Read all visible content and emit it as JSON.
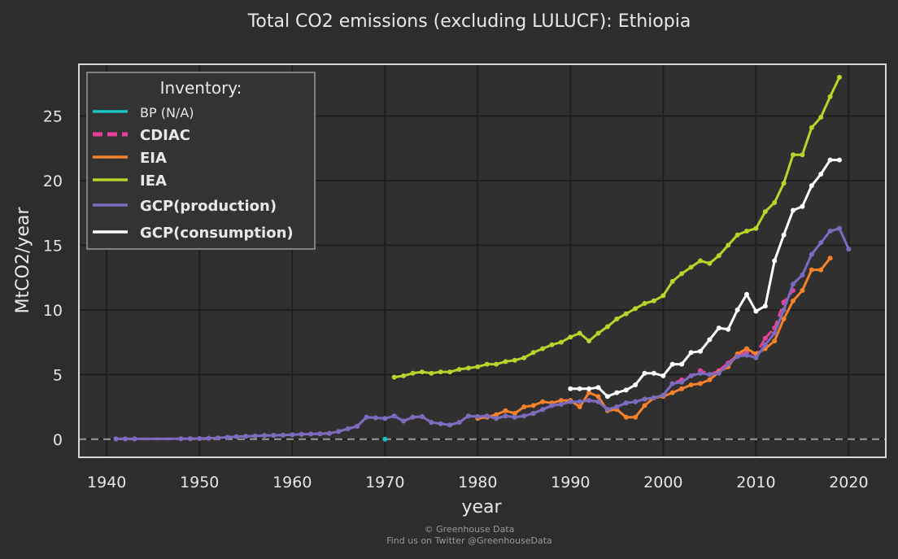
{
  "chart_data": {
    "type": "line",
    "title": "Total CO2 emissions (excluding LULUCF): Ethiopia",
    "xlabel": "year",
    "ylabel": "MtCO2/year",
    "xlim": [
      1937,
      2024
    ],
    "ylim": [
      -1.4,
      29
    ],
    "xticks": [
      1940,
      1950,
      1960,
      1970,
      1980,
      1990,
      2000,
      2010,
      2020
    ],
    "yticks": [
      0,
      5,
      10,
      15,
      20,
      25
    ],
    "grid": true,
    "zero_line": true,
    "legend": {
      "title": "Inventory:",
      "position": "top-left",
      "entries": [
        "BP (N/A)",
        "CDIAC",
        "EIA",
        "IEA",
        "GCP(production)",
        "GCP(consumption)"
      ]
    },
    "series": [
      {
        "name": "BP (N/A)",
        "color": "#16c4c4",
        "dashed": false,
        "x": [
          1970
        ],
        "y": [
          0
        ]
      },
      {
        "name": "CDIAC",
        "color": "#e8419a",
        "dashed": true,
        "x": [
          1941,
          1942,
          1943,
          1948,
          1949,
          1950,
          1951,
          1952,
          1953,
          1954,
          1955,
          1956,
          1957,
          1958,
          1959,
          1960,
          1961,
          1962,
          1963,
          1964,
          1965,
          1966,
          1967,
          1968,
          1969,
          1970,
          1971,
          1972,
          1973,
          1974,
          1975,
          1976,
          1977,
          1978,
          1979,
          1980,
          1981,
          1982,
          1983,
          1984,
          1985,
          1986,
          1987,
          1988,
          1989,
          1990,
          1991,
          1992,
          1993,
          1994,
          1995,
          1996,
          1997,
          1998,
          1999,
          2000,
          2001,
          2002,
          2003,
          2004,
          2005,
          2006,
          2007,
          2008,
          2009,
          2010,
          2011,
          2012,
          2013,
          2014
        ],
        "y": [
          0.02,
          0.02,
          0.02,
          0.03,
          0.04,
          0.05,
          0.07,
          0.1,
          0.15,
          0.2,
          0.22,
          0.25,
          0.28,
          0.3,
          0.32,
          0.35,
          0.38,
          0.4,
          0.42,
          0.45,
          0.6,
          0.8,
          1.0,
          1.7,
          1.65,
          1.6,
          1.8,
          1.4,
          1.7,
          1.75,
          1.3,
          1.2,
          1.1,
          1.3,
          1.8,
          1.75,
          1.8,
          1.6,
          1.8,
          1.7,
          1.8,
          2.0,
          2.3,
          2.6,
          2.7,
          2.9,
          2.9,
          3.0,
          2.9,
          2.3,
          2.5,
          2.8,
          2.9,
          3.1,
          3.2,
          3.4,
          4.3,
          4.6,
          4.9,
          5.3,
          5.0,
          5.3,
          5.9,
          6.5,
          6.7,
          6.6,
          7.8,
          8.6,
          10.6,
          11.5
        ]
      },
      {
        "name": "EIA",
        "color": "#f5822a",
        "dashed": false,
        "x": [
          1980,
          1981,
          1982,
          1983,
          1984,
          1985,
          1986,
          1987,
          1988,
          1989,
          1990,
          1991,
          1992,
          1993,
          1994,
          1995,
          1996,
          1997,
          1998,
          1999,
          2000,
          2001,
          2002,
          2003,
          2004,
          2005,
          2006,
          2007,
          2008,
          2009,
          2010,
          2011,
          2012,
          2013,
          2014,
          2015,
          2016,
          2017,
          2018
        ],
        "y": [
          1.6,
          1.7,
          1.9,
          2.2,
          2.0,
          2.5,
          2.6,
          2.9,
          2.8,
          3.0,
          3.0,
          2.5,
          3.6,
          3.3,
          2.2,
          2.3,
          1.7,
          1.7,
          2.6,
          3.2,
          3.3,
          3.6,
          3.9,
          4.2,
          4.3,
          4.6,
          5.2,
          5.6,
          6.6,
          7.0,
          6.6,
          7.0,
          7.6,
          9.3,
          10.7,
          11.5,
          13.1,
          13.1,
          14.0
        ]
      },
      {
        "name": "IEA",
        "color": "#b7d52a",
        "dashed": false,
        "x": [
          1971,
          1972,
          1973,
          1974,
          1975,
          1976,
          1977,
          1978,
          1979,
          1980,
          1981,
          1982,
          1983,
          1984,
          1985,
          1986,
          1987,
          1988,
          1989,
          1990,
          1991,
          1992,
          1993,
          1994,
          1995,
          1996,
          1997,
          1998,
          1999,
          2000,
          2001,
          2002,
          2003,
          2004,
          2005,
          2006,
          2007,
          2008,
          2009,
          2010,
          2011,
          2012,
          2013,
          2014,
          2015,
          2016,
          2017,
          2018,
          2019
        ],
        "y": [
          4.8,
          4.9,
          5.1,
          5.2,
          5.1,
          5.2,
          5.2,
          5.4,
          5.5,
          5.6,
          5.8,
          5.8,
          6.0,
          6.1,
          6.3,
          6.7,
          7.0,
          7.3,
          7.5,
          7.9,
          8.2,
          7.6,
          8.2,
          8.7,
          9.3,
          9.7,
          10.1,
          10.5,
          10.7,
          11.1,
          12.2,
          12.8,
          13.3,
          13.8,
          13.6,
          14.2,
          15.0,
          15.8,
          16.1,
          16.3,
          17.6,
          18.3,
          19.8,
          22.0,
          22.0,
          24.1,
          24.9,
          26.5,
          28.0
        ]
      },
      {
        "name": "GCP(production)",
        "color": "#7b6cbf",
        "dashed": false,
        "x": [
          1941,
          1942,
          1943,
          1948,
          1949,
          1950,
          1951,
          1952,
          1953,
          1954,
          1955,
          1956,
          1957,
          1958,
          1959,
          1960,
          1961,
          1962,
          1963,
          1964,
          1965,
          1966,
          1967,
          1968,
          1969,
          1970,
          1971,
          1972,
          1973,
          1974,
          1975,
          1976,
          1977,
          1978,
          1979,
          1980,
          1981,
          1982,
          1983,
          1984,
          1985,
          1986,
          1987,
          1988,
          1989,
          1990,
          1991,
          1992,
          1993,
          1994,
          1995,
          1996,
          1997,
          1998,
          1999,
          2000,
          2001,
          2002,
          2003,
          2004,
          2005,
          2006,
          2007,
          2008,
          2009,
          2010,
          2011,
          2012,
          2013,
          2014,
          2015,
          2016,
          2017,
          2018,
          2019,
          2020
        ],
        "y": [
          0.02,
          0.02,
          0.02,
          0.03,
          0.04,
          0.05,
          0.07,
          0.1,
          0.15,
          0.2,
          0.22,
          0.25,
          0.28,
          0.3,
          0.32,
          0.35,
          0.38,
          0.4,
          0.42,
          0.45,
          0.6,
          0.8,
          1.0,
          1.7,
          1.65,
          1.6,
          1.8,
          1.4,
          1.7,
          1.75,
          1.3,
          1.2,
          1.1,
          1.3,
          1.8,
          1.75,
          1.8,
          1.6,
          1.8,
          1.7,
          1.8,
          2.0,
          2.3,
          2.6,
          2.7,
          2.9,
          2.9,
          3.0,
          2.9,
          2.3,
          2.5,
          2.8,
          2.9,
          3.1,
          3.2,
          3.4,
          4.3,
          4.4,
          4.9,
          5.1,
          5.0,
          5.1,
          5.8,
          6.4,
          6.5,
          6.3,
          7.3,
          8.2,
          10.0,
          12.0,
          12.7,
          14.3,
          15.2,
          16.1,
          16.3,
          14.7
        ]
      },
      {
        "name": "GCP(consumption)",
        "color": "#ffffff",
        "dashed": false,
        "x": [
          1990,
          1991,
          1992,
          1993,
          1994,
          1995,
          1996,
          1997,
          1998,
          1999,
          2000,
          2001,
          2002,
          2003,
          2004,
          2005,
          2006,
          2007,
          2008,
          2009,
          2010,
          2011,
          2012,
          2013,
          2014,
          2015,
          2016,
          2017,
          2018,
          2019
        ],
        "y": [
          3.9,
          3.9,
          3.9,
          4.0,
          3.3,
          3.6,
          3.8,
          4.2,
          5.1,
          5.1,
          4.9,
          5.8,
          5.8,
          6.7,
          6.8,
          7.7,
          8.6,
          8.5,
          10.0,
          11.2,
          9.9,
          10.3,
          13.8,
          15.8,
          17.7,
          18.0,
          19.6,
          20.5,
          21.6,
          21.6
        ]
      }
    ]
  },
  "credits": {
    "line1": "© Greenhouse Data",
    "line2": "Find us on Twitter @GreenhouseData"
  }
}
